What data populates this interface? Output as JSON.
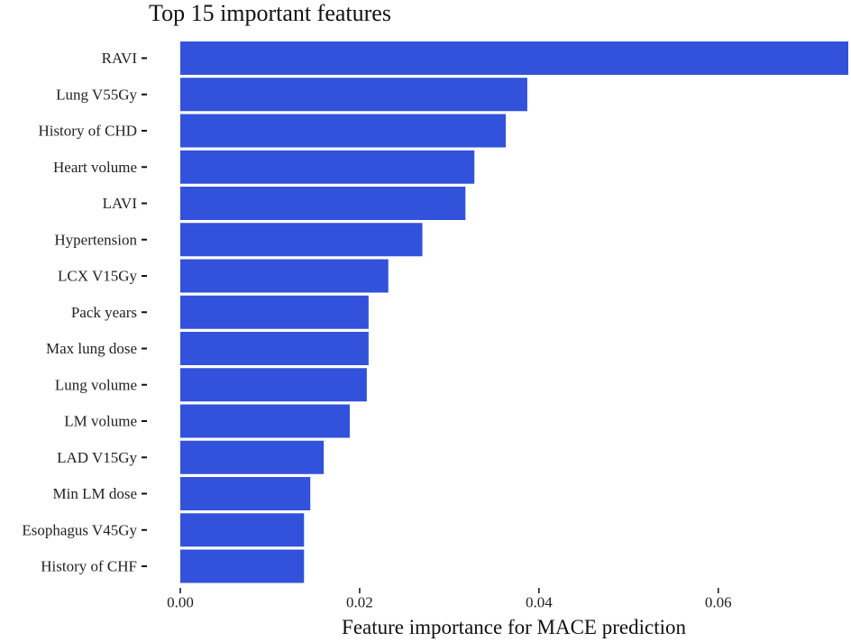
{
  "chart_data": {
    "type": "bar",
    "orientation": "horizontal",
    "title": "Top 15 important features",
    "xlabel": "Feature importance for MACE prediction",
    "ylabel": "",
    "categories": [
      "RAVI",
      "Lung V55Gy",
      "History of CHD",
      "Heart volume",
      "LAVI",
      "Hypertension",
      "LCX V15Gy",
      "Pack years",
      "Max lung dose",
      "Lung volume",
      "LM volume",
      "LAD V15Gy",
      "Min LM dose",
      "Esophagus V45Gy",
      "History of CHF"
    ],
    "values": [
      0.0745,
      0.0387,
      0.0363,
      0.0328,
      0.0318,
      0.027,
      0.0232,
      0.021,
      0.021,
      0.0208,
      0.0189,
      0.016,
      0.0145,
      0.0138,
      0.0138
    ],
    "xlim": [
      0,
      0.0745
    ],
    "xticks": [
      0,
      0.02,
      0.04,
      0.06
    ],
    "xtick_labels": [
      "0.00",
      "0.02",
      "0.04",
      "0.06"
    ],
    "grid": false,
    "legend": "none",
    "bar_color": "#3352DB"
  }
}
